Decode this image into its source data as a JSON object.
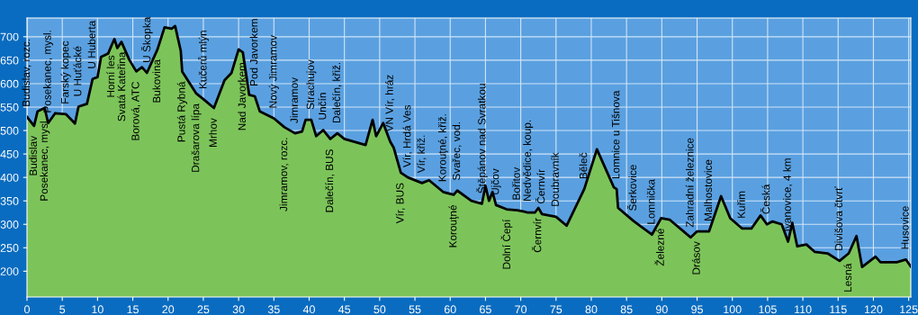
{
  "chart_data": {
    "type": "area",
    "x": [
      0,
      1,
      1.5,
      2.5,
      3,
      4,
      5.5,
      6.8,
      7.3,
      8.5,
      9.3,
      10,
      10.5,
      11.5,
      12,
      12.4,
      12.8,
      13.4,
      14.5,
      15.5,
      16.3,
      17,
      18.5,
      19.5,
      20.5,
      21,
      21.8,
      22,
      24,
      25,
      26.5,
      28,
      29,
      30,
      30.6,
      31.5,
      32.3,
      33,
      35,
      36.5,
      38,
      39,
      39.5,
      40.3,
      41,
      42,
      43,
      44,
      45,
      48,
      49,
      49.5,
      50.5,
      51.5,
      52,
      53,
      54,
      56,
      57,
      59,
      60.5,
      61,
      63,
      64.5,
      65,
      65.5,
      66,
      66.5,
      68,
      69.5,
      70.5,
      71,
      72,
      72.5,
      73,
      75,
      76.5,
      79,
      80.8,
      83.2,
      83.6,
      83.8,
      86,
      88.6,
      89.9,
      91.1,
      94.1,
      95,
      96.7,
      98.4,
      99.7,
      101.4,
      102.7,
      104,
      104.9,
      105.7,
      107,
      107.9,
      108.5,
      109.2,
      110.5,
      111.7,
      113.5,
      115.2,
      116.5,
      117.6,
      118.4,
      120.3,
      121,
      123.3,
      124.6,
      125.3
    ],
    "series": [
      {
        "color": "#7cc45a",
        "values": [
          529,
          510,
          541,
          548,
          516,
          537,
          535,
          515,
          551,
          557,
          610,
          614,
          657,
          664,
          682,
          695,
          676,
          689,
          651,
          626,
          635,
          623,
          673,
          720,
          717,
          723,
          670,
          626,
          579,
          567,
          548,
          607,
          623,
          673,
          667,
          576,
          573,
          541,
          526,
          507,
          494,
          498,
          523,
          523,
          488,
          501,
          482,
          494,
          482,
          469,
          523,
          488,
          516,
          476,
          463,
          410,
          400,
          388,
          394,
          369,
          363,
          372,
          350,
          344,
          382,
          350,
          369,
          341,
          332,
          330,
          327,
          325,
          325,
          335,
          322,
          316,
          297,
          375,
          460,
          379,
          375,
          335,
          307,
          278,
          313,
          310,
          272,
          285,
          285,
          360,
          313,
          291,
          291,
          319,
          300,
          306,
          300,
          263,
          303,
          253,
          257,
          241,
          238,
          222,
          238,
          275,
          209,
          231,
          219,
          219,
          225,
          210
        ]
      }
    ],
    "xlim": [
      0,
      125.3
    ],
    "ylim": [
      145,
      740
    ],
    "xticks": [
      0,
      5,
      10,
      15,
      20,
      25,
      30,
      35,
      40,
      45,
      50,
      55,
      60,
      65,
      70,
      75,
      80,
      85,
      90,
      95,
      100,
      105,
      110,
      115,
      120,
      125
    ],
    "yticks": [
      200,
      250,
      300,
      350,
      400,
      450,
      500,
      550,
      600,
      650,
      700
    ],
    "grid": true,
    "annotations": [
      {
        "text": "Budislav, rozc.",
        "x": 0,
        "y": 529
      },
      {
        "text": "Budislav",
        "x": 1,
        "y": 510
      },
      {
        "text": "Posekanec, mysl.",
        "x": 2.5,
        "y": 548
      },
      {
        "text": "Posekanec, mysl.",
        "x": 3,
        "y": 516
      },
      {
        "text": "Farský kopec",
        "x": 5.5,
        "y": 535
      },
      {
        "text": "U Huťácké",
        "x": 7.3,
        "y": 551
      },
      {
        "text": "U Huberta",
        "x": 9.3,
        "y": 610
      },
      {
        "text": "Horní les",
        "x": 12,
        "y": 682
      },
      {
        "text": "Svatá Kateřina",
        "x": 13.4,
        "y": 689
      },
      {
        "text": "Borová, ATC",
        "x": 15.5,
        "y": 626
      },
      {
        "text": "U Škopka",
        "x": 17,
        "y": 623
      },
      {
        "text": "Bukovina",
        "x": 18.5,
        "y": 673
      },
      {
        "text": "Pustá Rybná",
        "x": 22,
        "y": 626
      },
      {
        "text": "Drašarova lípa",
        "x": 24,
        "y": 579
      },
      {
        "text": "Kučerů mlýn",
        "x": 25,
        "y": 567
      },
      {
        "text": "Mrhov",
        "x": 26.5,
        "y": 548
      },
      {
        "text": "Nad Javorkem",
        "x": 30.6,
        "y": 667
      },
      {
        "text": "Pod Javorkem",
        "x": 32.3,
        "y": 573
      },
      {
        "text": "Nový Jimramov",
        "x": 35,
        "y": 526
      },
      {
        "text": "Jimramov, rozc.",
        "x": 36.5,
        "y": 507
      },
      {
        "text": "Jimramov",
        "x": 38,
        "y": 494
      },
      {
        "text": "Strachujov",
        "x": 40.3,
        "y": 523
      },
      {
        "text": "Unčín",
        "x": 42,
        "y": 501
      },
      {
        "text": "Dalečín, BUS",
        "x": 43,
        "y": 482
      },
      {
        "text": "Dalečín, křiž.",
        "x": 44,
        "y": 494
      },
      {
        "text": "VN Vír, hráz",
        "x": 51.5,
        "y": 476
      },
      {
        "text": "Vír, BUS",
        "x": 53,
        "y": 410
      },
      {
        "text": "Vír, Hrdá Ves",
        "x": 54,
        "y": 400
      },
      {
        "text": "Vír, křiž.",
        "x": 56,
        "y": 388
      },
      {
        "text": "Korouţné, křiž.",
        "x": 59,
        "y": 369
      },
      {
        "text": "Korouţné",
        "x": 60.5,
        "y": 363
      },
      {
        "text": "Svařec, vod.",
        "x": 61,
        "y": 372
      },
      {
        "text": "Štěpánov nad Svratkou",
        "x": 64.5,
        "y": 344
      },
      {
        "text": "Ujčov",
        "x": 66.5,
        "y": 341
      },
      {
        "text": "Dolní Čepí",
        "x": 68,
        "y": 332
      },
      {
        "text": "Bořitov",
        "x": 69.5,
        "y": 330
      },
      {
        "text": "Nedvědice, koup.",
        "x": 70.5,
        "y": 327
      },
      {
        "text": "Černvír",
        "x": 72.5,
        "y": 335
      },
      {
        "text": "Černvír",
        "x": 73,
        "y": 322
      },
      {
        "text": "Doubravník",
        "x": 75,
        "y": 316
      },
      {
        "text": "Běleč",
        "x": 79,
        "y": 375
      },
      {
        "text": "Lomnice u Tišnova",
        "x": 83.6,
        "y": 375
      },
      {
        "text": "Šerkovice",
        "x": 86,
        "y": 307
      },
      {
        "text": "Lomnička",
        "x": 88.6,
        "y": 278
      },
      {
        "text": "Železné",
        "x": 89.9,
        "y": 313
      },
      {
        "text": "Zahradní železnice",
        "x": 94.1,
        "y": 272
      },
      {
        "text": "Drásov",
        "x": 95,
        "y": 285
      },
      {
        "text": "Malhostovice",
        "x": 96.7,
        "y": 285
      },
      {
        "text": "Kuřim",
        "x": 101.4,
        "y": 291
      },
      {
        "text": "Česká",
        "x": 104.9,
        "y": 300
      },
      {
        "text": "Ivanovice, 4 km",
        "x": 107.9,
        "y": 263
      },
      {
        "text": "Divišova čtvrť",
        "x": 115.2,
        "y": 222
      },
      {
        "text": "Lesná",
        "x": 116.5,
        "y": 238
      },
      {
        "text": "Husovice",
        "x": 124.6,
        "y": 225
      }
    ]
  }
}
